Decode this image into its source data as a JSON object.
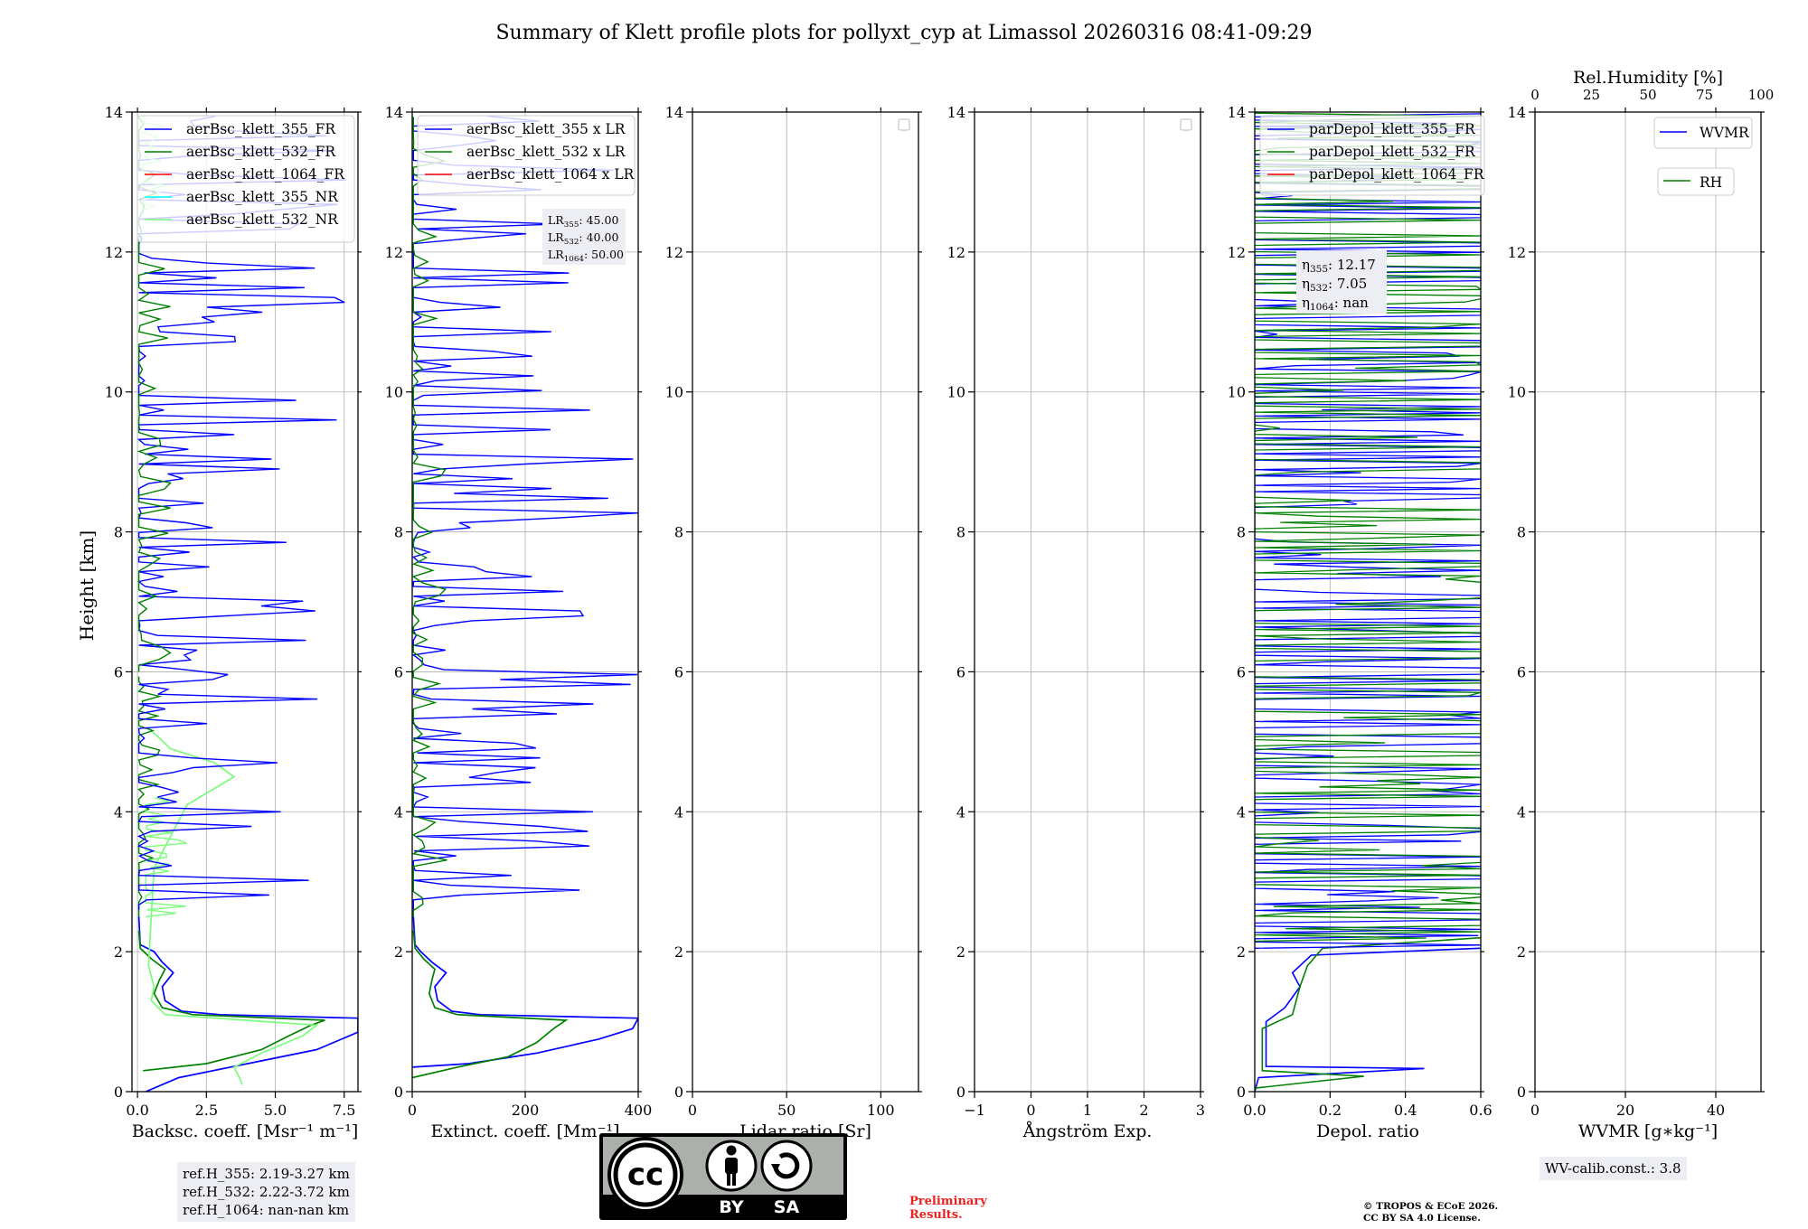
{
  "figure": {
    "title": "Summary of Klett profile plots for pollyxt_cyp at Limassol 20260316 08:41-09:29",
    "y_label": "Height [km]",
    "preliminary": [
      "Preliminary",
      "Results."
    ],
    "copyright": [
      "© TROPOS & ECoE 2026.",
      "CC BY SA 4.0 License."
    ],
    "license_badge": {
      "cc": "cc",
      "by": "BY",
      "sa": "SA"
    },
    "refH": [
      "ref.H_355: 2.19-3.27 km",
      "ref.H_532: 2.22-3.72 km",
      "ref.H_1064: nan-nan km"
    ],
    "wv_calib": "WV-calib.const.: 3.8",
    "colors": {
      "b355": "#0000ff",
      "b532": "#008000",
      "b1064": "#ff0000",
      "nr355": "#00ffff",
      "nr532": "#7cfc7c",
      "grid": "#b0b0b0"
    }
  },
  "chart_data": [
    {
      "type": "line",
      "panel": "backscatter",
      "xlabel": "Backsc. coeff. [Msr⁻¹ m⁻¹]",
      "xlim": [
        -0.2,
        8.0
      ],
      "xticks": [
        0,
        2.5,
        5,
        7.5
      ],
      "xticklabels": [
        "0.0",
        "2.5",
        "5.0",
        "7.5"
      ],
      "ylim": [
        0,
        14
      ],
      "yticks": [
        0,
        2,
        4,
        6,
        8,
        10,
        12,
        14
      ],
      "legend": [
        "aerBsc_klett_355_FR",
        "aerBsc_klett_532_FR",
        "aerBsc_klett_1064_FR",
        "aerBsc_klett_355_NR",
        "aerBsc_klett_532_NR"
      ],
      "series": [
        {
          "name": "aerBsc_klett_355_FR",
          "color": "#0000ff",
          "profile": [
            [
              0.3,
              0.0
            ],
            [
              1.5,
              0.2
            ],
            [
              4.0,
              0.4
            ],
            [
              6.5,
              0.6
            ],
            [
              8.0,
              0.85
            ],
            [
              8.0,
              1.05
            ],
            [
              3.0,
              1.1
            ],
            [
              1.6,
              1.15
            ],
            [
              1.0,
              1.3
            ],
            [
              0.9,
              1.5
            ],
            [
              1.3,
              1.7
            ],
            [
              0.9,
              1.85
            ],
            [
              0.6,
              2.0
            ],
            [
              0.1,
              2.1
            ],
            [
              0.05,
              2.5
            ]
          ]
        },
        {
          "name": "aerBsc_klett_532_FR",
          "color": "#008000",
          "profile": [
            [
              0.2,
              0.3
            ],
            [
              2.5,
              0.4
            ],
            [
              4.5,
              0.6
            ],
            [
              5.5,
              0.8
            ],
            [
              6.3,
              0.95
            ],
            [
              6.8,
              1.02
            ],
            [
              2.0,
              1.1
            ],
            [
              0.9,
              1.2
            ],
            [
              0.6,
              1.4
            ],
            [
              0.8,
              1.6
            ],
            [
              1.0,
              1.75
            ],
            [
              0.5,
              1.9
            ],
            [
              0.1,
              2.05
            ],
            [
              0.05,
              2.3
            ]
          ]
        },
        {
          "name": "aerBsc_klett_355_NR",
          "color": "#00ffff",
          "profile": []
        },
        {
          "name": "aerBsc_klett_532_NR",
          "color": "#7cfc7c",
          "profile": [
            [
              3.8,
              0.1
            ],
            [
              3.7,
              0.2
            ],
            [
              3.5,
              0.35
            ],
            [
              4.5,
              0.55
            ],
            [
              6.0,
              0.8
            ],
            [
              6.5,
              0.95
            ],
            [
              1.0,
              1.1
            ],
            [
              0.5,
              1.3
            ],
            [
              0.6,
              1.5
            ],
            [
              0.4,
              1.8
            ],
            [
              0.6,
              3.2
            ],
            [
              1.8,
              4.1
            ],
            [
              3.5,
              4.5
            ],
            [
              2.8,
              4.7
            ],
            [
              1.2,
              4.9
            ],
            [
              0.4,
              5.2
            ]
          ]
        }
      ]
    },
    {
      "type": "line",
      "panel": "extinction",
      "xlabel": "Extinct. coeff. [Mm⁻¹]",
      "xlim": [
        0,
        400
      ],
      "xticks": [
        0,
        200,
        400
      ],
      "xticklabels": [
        "0",
        "200",
        "400"
      ],
      "ylim": [
        0,
        14
      ],
      "legend": [
        "aerBsc_klett_355 x LR",
        "aerBsc_klett_532 x LR",
        "aerBsc_klett_1064 x LR"
      ],
      "lidar_ratios": [
        {
          "label": "LR",
          "sub": "355",
          "value": ": 45.00"
        },
        {
          "label": "LR",
          "sub": "532",
          "value": ": 40.00"
        },
        {
          "label": "LR",
          "sub": "1064",
          "value": ": 50.00"
        }
      ],
      "series": [
        {
          "name": "aerBsc_klett_355 x LR",
          "color": "#0000ff",
          "profile": [
            [
              0,
              0.35
            ],
            [
              100,
              0.4
            ],
            [
              220,
              0.55
            ],
            [
              330,
              0.75
            ],
            [
              390,
              0.9
            ],
            [
              400,
              1.05
            ],
            [
              120,
              1.1
            ],
            [
              70,
              1.15
            ],
            [
              45,
              1.3
            ],
            [
              40,
              1.5
            ],
            [
              60,
              1.7
            ],
            [
              35,
              1.85
            ],
            [
              15,
              2.0
            ],
            [
              5,
              2.1
            ],
            [
              2,
              2.5
            ]
          ]
        },
        {
          "name": "aerBsc_klett_532 x LR",
          "color": "#008000",
          "profile": [
            [
              0,
              0.2
            ],
            [
              80,
              0.35
            ],
            [
              170,
              0.5
            ],
            [
              220,
              0.7
            ],
            [
              250,
              0.9
            ],
            [
              272,
              1.02
            ],
            [
              80,
              1.1
            ],
            [
              40,
              1.2
            ],
            [
              30,
              1.4
            ],
            [
              35,
              1.6
            ],
            [
              40,
              1.75
            ],
            [
              20,
              1.9
            ],
            [
              5,
              2.05
            ],
            [
              2,
              2.3
            ]
          ]
        }
      ]
    },
    {
      "type": "line",
      "panel": "lidar_ratio",
      "xlabel": "Lidar ratio [Sr]",
      "xlim": [
        0,
        120
      ],
      "xticks": [
        0,
        50,
        100
      ],
      "xticklabels": [
        "0",
        "50",
        "100"
      ],
      "ylim": [
        0,
        14
      ],
      "series": []
    },
    {
      "type": "line",
      "panel": "angstrom",
      "xlabel": "Ångström Exp.",
      "xlim": [
        -1,
        3
      ],
      "xticks": [
        -1,
        0,
        1,
        2,
        3
      ],
      "xticklabels": [
        "−1",
        "0",
        "1",
        "2",
        "3"
      ],
      "ylim": [
        0,
        14
      ],
      "series": []
    },
    {
      "type": "line",
      "panel": "depol",
      "xlabel": "Depol. ratio",
      "xlim": [
        0,
        0.6
      ],
      "xticks": [
        0,
        0.2,
        0.4,
        0.6
      ],
      "xticklabels": [
        "0.0",
        "0.2",
        "0.4",
        "0.6"
      ],
      "ylim": [
        0,
        14
      ],
      "legend": [
        "parDepol_klett_355_FR",
        "parDepol_klett_532_FR",
        "parDepol_klett_1064_FR"
      ],
      "eta": [
        {
          "label": "η",
          "sub": "355",
          "value": ": 12.17"
        },
        {
          "label": "η",
          "sub": "532",
          "value": ": 7.05"
        },
        {
          "label": "η",
          "sub": "1064",
          "value": ": nan"
        }
      ],
      "series": [
        {
          "name": "parDepol_klett_355_FR",
          "color": "#0000ff",
          "profile": [
            [
              0.0,
              0.0
            ],
            [
              0.01,
              0.2
            ],
            [
              0.45,
              0.33
            ],
            [
              0.03,
              0.36
            ],
            [
              0.03,
              1.0
            ],
            [
              0.08,
              1.2
            ],
            [
              0.12,
              1.5
            ],
            [
              0.1,
              1.7
            ],
            [
              0.15,
              1.95
            ],
            [
              0.6,
              2.05
            ]
          ]
        },
        {
          "name": "parDepol_klett_532_FR",
          "color": "#008000",
          "profile": [
            [
              0.0,
              0.05
            ],
            [
              0.29,
              0.22
            ],
            [
              0.02,
              0.3
            ],
            [
              0.02,
              0.9
            ],
            [
              0.1,
              1.1
            ],
            [
              0.12,
              1.5
            ],
            [
              0.14,
              1.8
            ],
            [
              0.18,
              2.05
            ],
            [
              0.6,
              2.2
            ]
          ]
        }
      ]
    },
    {
      "type": "line",
      "panel": "wvmr",
      "xlabel": "WVMR [g∗kg⁻¹]",
      "xlim": [
        0,
        50
      ],
      "xticks": [
        0,
        20,
        40
      ],
      "xticklabels": [
        "0",
        "20",
        "40"
      ],
      "ylim": [
        0,
        14
      ],
      "top_axis": {
        "label": "Rel.Humidity [%]",
        "xlim": [
          0,
          100
        ],
        "ticks": [
          0,
          25,
          50,
          75,
          100
        ]
      },
      "legend": [
        "WVMR",
        "RH"
      ],
      "series": []
    }
  ]
}
